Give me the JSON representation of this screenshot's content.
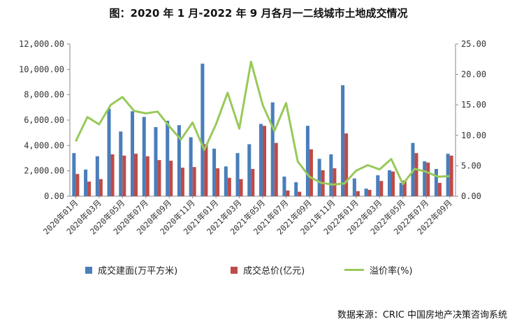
{
  "title": "图：2020 年 1 月-2022 年 9 月各月一二线城市土地成交情况",
  "source": "数据来源：CRIC 中国房地产决策咨询系统",
  "colors": {
    "area": "#4a7ebb",
    "price": "#be4b48",
    "premium": "#98c95a",
    "axis": "#888888"
  },
  "chart_data": {
    "type": "bar",
    "categories": [
      "2020年01月",
      "2020年02月",
      "2020年03月",
      "2020年04月",
      "2020年05月",
      "2020年06月",
      "2020年07月",
      "2020年08月",
      "2020年09月",
      "2020年10月",
      "2020年11月",
      "2020年12月",
      "2021年01月",
      "2021年02月",
      "2021年03月",
      "2021年04月",
      "2021年05月",
      "2021年06月",
      "2021年07月",
      "2021年08月",
      "2021年09月",
      "2021年10月",
      "2021年11月",
      "2021年12月",
      "2022年01月",
      "2022年02月",
      "2022年03月",
      "2022年04月",
      "2022年05月",
      "2022年06月",
      "2022年07月",
      "2022年08月",
      "2022年09月"
    ],
    "x_tick_labels": [
      "2020年01月",
      "2020年03月",
      "2020年05月",
      "2020年07月",
      "2020年09月",
      "2020年11月",
      "2021年01月",
      "2021年03月",
      "2021年05月",
      "2021年07月",
      "2021年09月",
      "2021年11月",
      "2022年01月",
      "2022年03月",
      "2022年05月",
      "2022年07月",
      "2022年09月"
    ],
    "series": [
      {
        "name": "成交建面(万平方米)",
        "type": "bar",
        "axis": "left",
        "values": [
          3400,
          2100,
          3150,
          6900,
          5100,
          6700,
          6250,
          5450,
          5950,
          5600,
          4650,
          10450,
          3750,
          2350,
          3400,
          4100,
          5700,
          7400,
          1550,
          1100,
          5550,
          2950,
          3300,
          8750,
          1400,
          600,
          1650,
          2050,
          1050,
          4200,
          2750,
          2150,
          3350
        ]
      },
      {
        "name": "成交总价(亿元)",
        "type": "bar",
        "axis": "left",
        "values": [
          1750,
          1150,
          1350,
          3300,
          3200,
          3350,
          3150,
          2850,
          2800,
          2250,
          2300,
          4100,
          2200,
          1450,
          1350,
          2150,
          5550,
          4200,
          450,
          350,
          3700,
          2050,
          2200,
          4950,
          400,
          500,
          1200,
          1950,
          1250,
          3400,
          2650,
          1050,
          3200
        ]
      },
      {
        "name": "溢价率(%)",
        "type": "line",
        "axis": "right",
        "values": [
          9.0,
          13.0,
          11.8,
          15.0,
          16.3,
          14.0,
          13.6,
          13.9,
          11.5,
          9.3,
          12.1,
          7.6,
          11.8,
          17.0,
          11.1,
          22.1,
          15.0,
          10.7,
          15.3,
          5.7,
          3.2,
          2.2,
          1.9,
          2.1,
          4.2,
          5.1,
          4.4,
          6.1,
          2.0,
          4.5,
          4.0,
          3.2,
          3.3
        ]
      }
    ],
    "y_left": {
      "min": 0,
      "max": 12000,
      "ticks": [
        "0.00",
        "2,000.00",
        "4,000.00",
        "6,000.00",
        "8,000.00",
        "10,000.00",
        "12,000.00"
      ]
    },
    "y_right": {
      "min": 0,
      "max": 25,
      "ticks": [
        "0.00",
        "5.00",
        "10.00",
        "15.00",
        "20.00",
        "25.00"
      ]
    },
    "legend_position": "bottom",
    "grid": false
  }
}
